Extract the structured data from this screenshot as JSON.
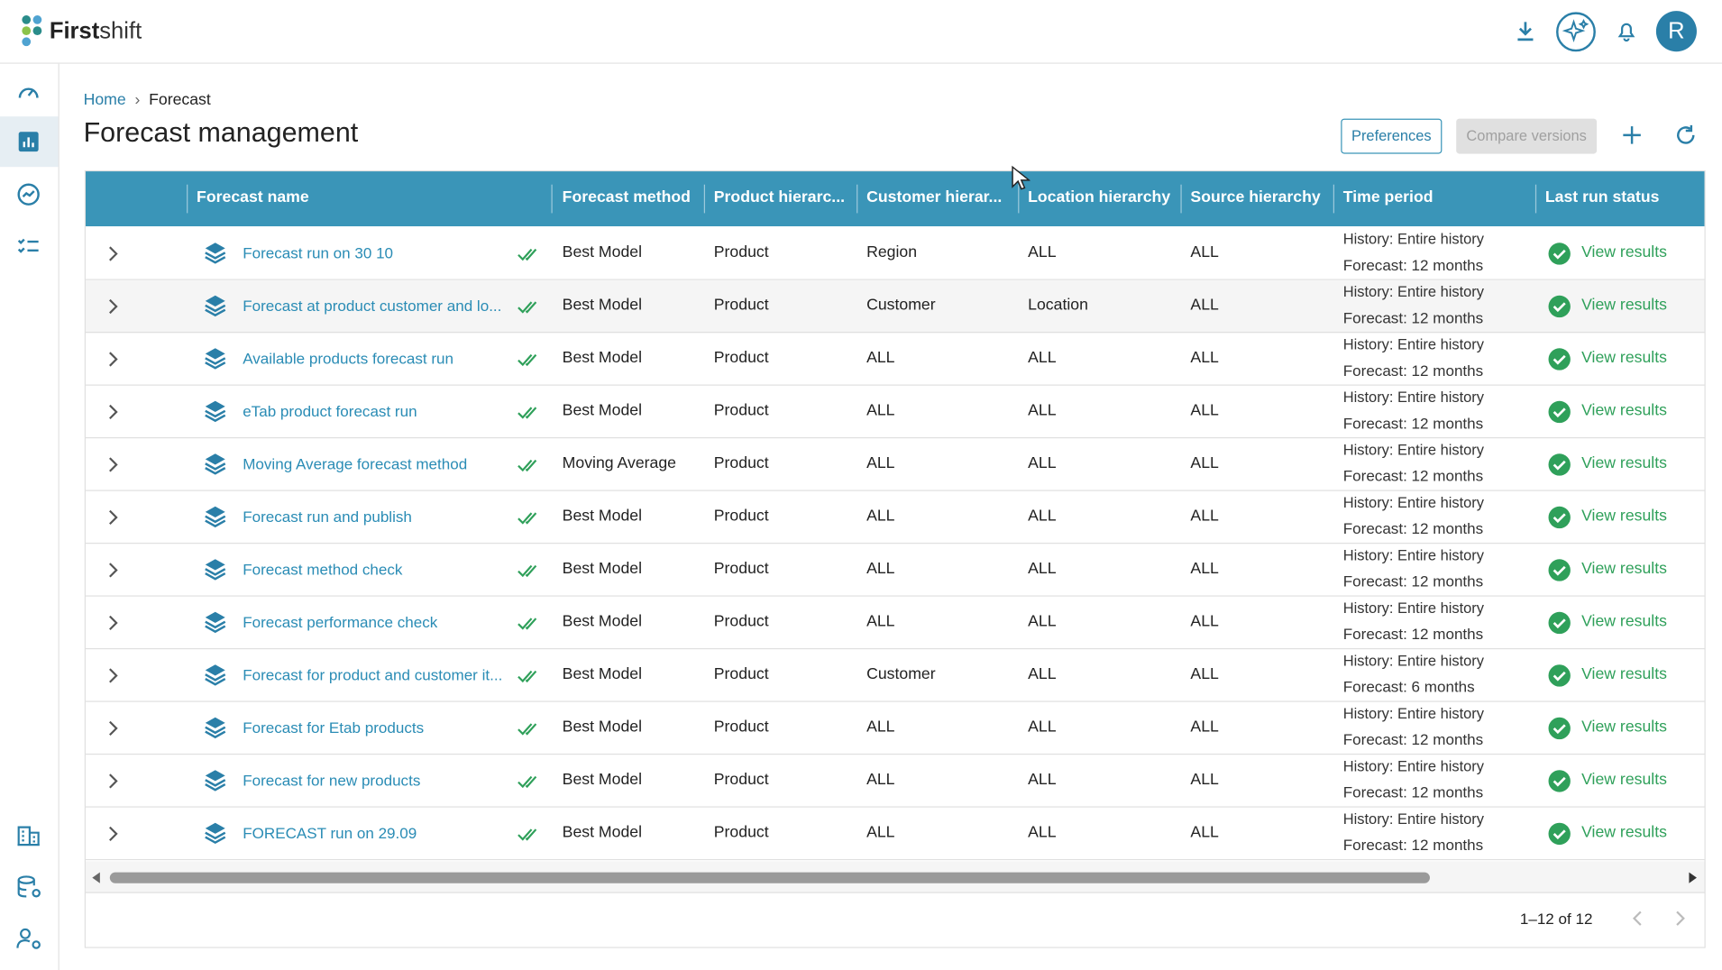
{
  "header": {
    "brand_bold": "First",
    "brand_light": "shift",
    "avatar": "R"
  },
  "breadcrumb": [
    "Home",
    "Forecast"
  ],
  "title": "Forecast management",
  "buttons": [
    "Preferences",
    "Compare versions"
  ],
  "table": {
    "columns": [
      "Forecast name",
      "Forecast method",
      "Product hierarc...",
      "Customer hierar...",
      "Location hierarchy",
      "Source hierarchy",
      "Time period",
      "Last run status"
    ],
    "rows": [
      [
        "Forecast run on 30 10",
        "Best Model",
        "Product",
        "Region",
        "ALL",
        "ALL",
        "History: Entire history",
        "Forecast: 12 months",
        "View results"
      ],
      [
        "Forecast at product customer and lo...",
        "Best Model",
        "Product",
        "Customer",
        "Location",
        "ALL",
        "History: Entire history",
        "Forecast: 12 months",
        "View results"
      ],
      [
        "Available products forecast run",
        "Best Model",
        "Product",
        "ALL",
        "ALL",
        "ALL",
        "History: Entire history",
        "Forecast: 12 months",
        "View results"
      ],
      [
        "eTab product forecast run",
        "Best Model",
        "Product",
        "ALL",
        "ALL",
        "ALL",
        "History: Entire history",
        "Forecast: 12 months",
        "View results"
      ],
      [
        "Moving Average forecast method",
        "Moving Average",
        "Product",
        "ALL",
        "ALL",
        "ALL",
        "History: Entire history",
        "Forecast: 12 months",
        "View results"
      ],
      [
        "Forecast run and publish",
        "Best Model",
        "Product",
        "ALL",
        "ALL",
        "ALL",
        "History: Entire history",
        "Forecast: 12 months",
        "View results"
      ],
      [
        "Forecast method check",
        "Best Model",
        "Product",
        "ALL",
        "ALL",
        "ALL",
        "History: Entire history",
        "Forecast: 12 months",
        "View results"
      ],
      [
        "Forecast performance check",
        "Best Model",
        "Product",
        "ALL",
        "ALL",
        "ALL",
        "History: Entire history",
        "Forecast: 12 months",
        "View results"
      ],
      [
        "Forecast for product and customer it...",
        "Best Model",
        "Product",
        "Customer",
        "ALL",
        "ALL",
        "History: Entire history",
        "Forecast: 6 months",
        "View results"
      ],
      [
        "Forecast for Etab products",
        "Best Model",
        "Product",
        "ALL",
        "ALL",
        "ALL",
        "History: Entire history",
        "Forecast: 12 months",
        "View results"
      ],
      [
        "Forecast for new products",
        "Best Model",
        "Product",
        "ALL",
        "ALL",
        "ALL",
        "History: Entire history",
        "Forecast: 12 months",
        "View results"
      ],
      [
        "FORECAST run on 29.09",
        "Best Model",
        "Product",
        "ALL",
        "ALL",
        "ALL",
        "History: Entire history",
        "Forecast: 12 months",
        "View results"
      ]
    ]
  },
  "pagination": "1–12 of 12"
}
